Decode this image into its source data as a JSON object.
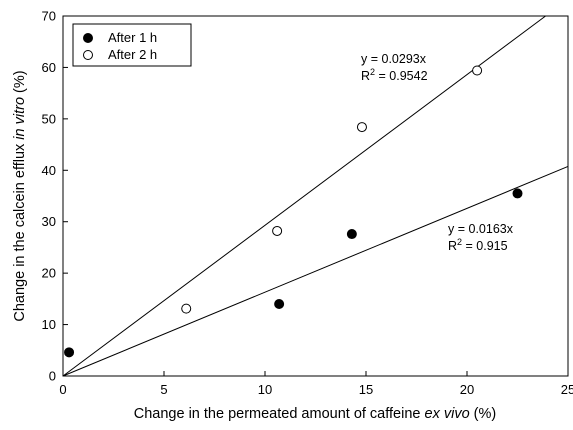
{
  "chart_data": {
    "type": "scatter",
    "xlabel": {
      "prefix": "Change in the permeated amount of caffeine ",
      "italic": "ex vivo",
      "suffix": " (%)"
    },
    "ylabel": {
      "prefix": "Change in the calcein efflux ",
      "italic": "in vitro",
      "suffix": " (%)"
    },
    "xlim": [
      0,
      25
    ],
    "ylim": [
      0,
      70
    ],
    "xticks": [
      0,
      5,
      10,
      15,
      20,
      25
    ],
    "yticks": [
      0,
      10,
      20,
      30,
      40,
      50,
      60,
      70
    ],
    "grid": false,
    "legend_position": "top-left",
    "series": [
      {
        "name": "After 1 h",
        "marker": "filled-circle",
        "color": "#000000",
        "points": [
          [
            0.3,
            4.6
          ],
          [
            10.7,
            14.0
          ],
          [
            14.3,
            27.6
          ],
          [
            22.5,
            35.5
          ]
        ],
        "fit": {
          "slope": 0.0163,
          "equation": "y = 0.0163x",
          "r2_prefix": "R",
          "r2_sup": "2",
          "r2_value": " = 0.915"
        }
      },
      {
        "name": "After 2 h",
        "marker": "open-circle",
        "color": "#000000",
        "points": [
          [
            6.1,
            13.1
          ],
          [
            10.6,
            28.2
          ],
          [
            14.8,
            48.4
          ],
          [
            20.5,
            59.4
          ]
        ],
        "fit": {
          "slope": 0.0293,
          "equation": "y = 0.0293x",
          "r2_prefix": "R",
          "r2_sup": "2",
          "r2_value": " = 0.9542"
        }
      }
    ]
  }
}
